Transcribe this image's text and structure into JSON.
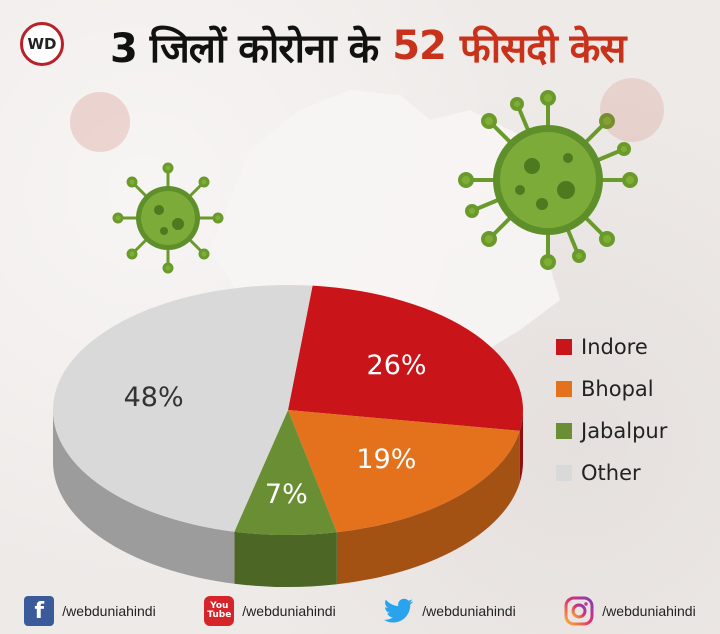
{
  "header": {
    "logo_text": "WD",
    "title_part1": "3 जिलों कोरोना के",
    "title_number": "52",
    "title_part2": "फीसदी केस"
  },
  "colors": {
    "title_accent": "#c8321a",
    "Indore": "#c9141a",
    "Bhopal": "#e4711c",
    "Jabalpur": "#6a8e34",
    "Other": "#d9d9d9"
  },
  "chart_data": {
    "type": "pie",
    "style": "3d",
    "categories": [
      "Indore",
      "Bhopal",
      "Jabalpur",
      "Other"
    ],
    "values": [
      26,
      19,
      7,
      48
    ],
    "labels": [
      "26%",
      "19%",
      "7%",
      "48%"
    ],
    "legend": {
      "placement": "right",
      "entries": [
        "Indore",
        "Bhopal",
        "Jabalpur",
        "Other"
      ]
    }
  },
  "footer": {
    "facebook": {
      "icon": "facebook-icon",
      "handle": "/webduniahindi"
    },
    "youtube": {
      "icon": "youtube-icon",
      "line1": "You",
      "line2": "Tube",
      "handle": "/webduniahindi"
    },
    "twitter": {
      "icon": "twitter-icon",
      "handle": "/webduniahindi"
    },
    "instagram": {
      "icon": "instagram-icon",
      "handle": "/webduniahindi"
    }
  }
}
